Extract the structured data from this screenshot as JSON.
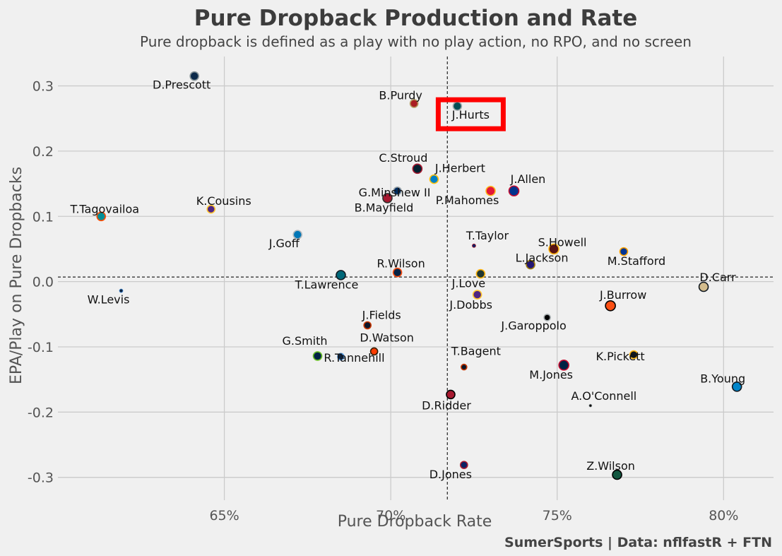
{
  "chart_data": {
    "type": "scatter",
    "title": "Pure Dropback Production and Rate",
    "subtitle": "Pure dropback is defined as a play with no play action, no RPO, and no screen",
    "xlabel": "Pure Dropback Rate",
    "ylabel": "EPA/Play on Pure Dropbacks",
    "credit": "SumerSports | Data: nflfastR + FTN",
    "xlim": [
      0.6,
      0.815
    ],
    "ylim": [
      -0.335,
      0.345
    ],
    "xticks": [
      0.65,
      0.7,
      0.75,
      0.8
    ],
    "xtick_labels": [
      "65%",
      "70%",
      "75%",
      "80%"
    ],
    "yticks": [
      0.3,
      0.2,
      0.1,
      0.0,
      -0.1,
      -0.2,
      -0.3
    ],
    "ytick_labels": [
      "0.3",
      "0.2",
      "0.1",
      "0.0",
      "-0.1",
      "-0.2",
      "-0.3"
    ],
    "ref_lines": {
      "x": 0.717,
      "y": 0.007
    },
    "grid": true,
    "highlight": "J.Hurts",
    "highlight_color": "#ff0000",
    "points": [
      {
        "name": "D.Prescott",
        "x": 0.641,
        "y": 0.315,
        "size": 11,
        "color": "#0b2a4a",
        "edge": "#869397"
      },
      {
        "name": "B.Purdy",
        "x": 0.707,
        "y": 0.273,
        "size": 10,
        "color": "#aa1e23",
        "edge": "#b3995d"
      },
      {
        "name": "J.Hurts",
        "x": 0.72,
        "y": 0.269,
        "size": 11,
        "color": "#004c54",
        "edge": "#a5acaf"
      },
      {
        "name": "C.Stroud",
        "x": 0.708,
        "y": 0.173,
        "size": 12,
        "color": "#03202f",
        "edge": "#a71930"
      },
      {
        "name": "J.Herbert",
        "x": 0.713,
        "y": 0.157,
        "size": 11,
        "color": "#0080c6",
        "edge": "#ffc20e"
      },
      {
        "name": "G.Minshew II",
        "x": 0.702,
        "y": 0.139,
        "size": 10,
        "color": "#002c5f",
        "edge": "#a2aaad"
      },
      {
        "name": "J.Allen",
        "x": 0.737,
        "y": 0.139,
        "size": 13,
        "color": "#00338d",
        "edge": "#c60c30"
      },
      {
        "name": "P.Mahomes",
        "x": 0.73,
        "y": 0.139,
        "size": 12,
        "color": "#e31837",
        "edge": "#ffb81c"
      },
      {
        "name": "B.Mayfield",
        "x": 0.699,
        "y": 0.128,
        "size": 12,
        "color": "#a71930",
        "edge": "#322f2b"
      },
      {
        "name": "T.Tagovailoa",
        "x": 0.613,
        "y": 0.1,
        "size": 11,
        "color": "#008e97",
        "edge": "#fc4c02"
      },
      {
        "name": "K.Cousins",
        "x": 0.646,
        "y": 0.111,
        "size": 10,
        "color": "#4f2683",
        "edge": "#ffc62f"
      },
      {
        "name": "J.Goff",
        "x": 0.672,
        "y": 0.072,
        "size": 11,
        "color": "#0076b6",
        "edge": "#b0b7bc"
      },
      {
        "name": "T.Taylor",
        "x": 0.725,
        "y": 0.055,
        "size": 4,
        "color": "#0b2265",
        "edge": "#a71930"
      },
      {
        "name": "S.Howell",
        "x": 0.749,
        "y": 0.05,
        "size": 13,
        "color": "#5a1414",
        "edge": "#ffb612"
      },
      {
        "name": "M.Stafford",
        "x": 0.77,
        "y": 0.046,
        "size": 10,
        "color": "#003594",
        "edge": "#ffa300"
      },
      {
        "name": "L.Jackson",
        "x": 0.742,
        "y": 0.026,
        "size": 11,
        "color": "#241773",
        "edge": "#9e7c0c"
      },
      {
        "name": "R.Wilson",
        "x": 0.702,
        "y": 0.014,
        "size": 11,
        "color": "#002244",
        "edge": "#fb4f14"
      },
      {
        "name": "T.Lawrence",
        "x": 0.685,
        "y": 0.01,
        "size": 12,
        "color": "#006778",
        "edge": "#101820"
      },
      {
        "name": "J.Love",
        "x": 0.727,
        "y": 0.012,
        "size": 11,
        "color": "#203731",
        "edge": "#ffb612"
      },
      {
        "name": "D.Carr",
        "x": 0.794,
        "y": -0.008,
        "size": 12,
        "color": "#d3bc8d",
        "edge": "#101820"
      },
      {
        "name": "W.Levis",
        "x": 0.619,
        "y": -0.014,
        "size": 4,
        "color": "#0c2340",
        "edge": "#4b92db"
      },
      {
        "name": "J.Dobbs",
        "x": 0.726,
        "y": -0.02,
        "size": 11,
        "color": "#4f2683",
        "edge": "#ffc62f"
      },
      {
        "name": "J.Burrow",
        "x": 0.766,
        "y": -0.037,
        "size": 13,
        "color": "#fb4f14",
        "edge": "#000000"
      },
      {
        "name": "J.Garoppolo",
        "x": 0.747,
        "y": -0.055,
        "size": 8,
        "color": "#000000",
        "edge": "#a5acaf"
      },
      {
        "name": "J.Fields",
        "x": 0.693,
        "y": -0.067,
        "size": 9,
        "color": "#0b162a",
        "edge": "#c83803"
      },
      {
        "name": "D.Watson",
        "x": 0.695,
        "y": -0.107,
        "size": 9,
        "color": "#ff3c00",
        "edge": "#311d00"
      },
      {
        "name": "G.Smith",
        "x": 0.678,
        "y": -0.114,
        "size": 11,
        "color": "#002244",
        "edge": "#69be28"
      },
      {
        "name": "R.Tannehill",
        "x": 0.685,
        "y": -0.115,
        "size": 8,
        "color": "#0c2340",
        "edge": "#4b92db"
      },
      {
        "name": "T.Bagent",
        "x": 0.722,
        "y": -0.131,
        "size": 7,
        "color": "#0b162a",
        "edge": "#c83803"
      },
      {
        "name": "M.Jones",
        "x": 0.752,
        "y": -0.128,
        "size": 13,
        "color": "#002244",
        "edge": "#c60c30"
      },
      {
        "name": "K.Pickett",
        "x": 0.773,
        "y": -0.112,
        "size": 10,
        "color": "#101820",
        "edge": "#ffb612"
      },
      {
        "name": "B.Young",
        "x": 0.804,
        "y": -0.161,
        "size": 12,
        "color": "#0085ca",
        "edge": "#101820"
      },
      {
        "name": "D.Ridder",
        "x": 0.718,
        "y": -0.173,
        "size": 11,
        "color": "#a71930",
        "edge": "#000000"
      },
      {
        "name": "A.O'Connell",
        "x": 0.76,
        "y": -0.19,
        "size": 3,
        "color": "#000000",
        "edge": "#a5acaf"
      },
      {
        "name": "D.Jones",
        "x": 0.722,
        "y": -0.281,
        "size": 9,
        "color": "#0b2265",
        "edge": "#a71930"
      },
      {
        "name": "Z.Wilson",
        "x": 0.768,
        "y": -0.296,
        "size": 12,
        "color": "#125740",
        "edge": "#000000"
      }
    ]
  }
}
